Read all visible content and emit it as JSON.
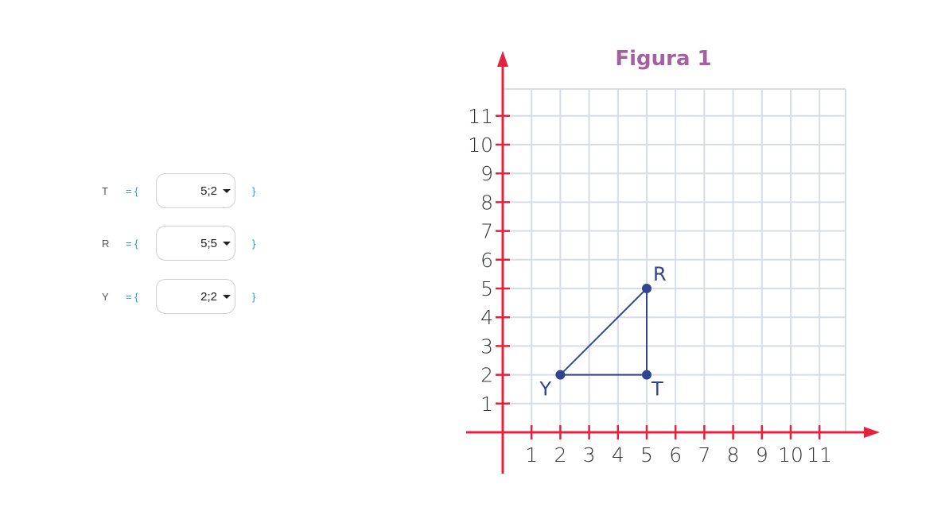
{
  "points": [
    {
      "label": "T",
      "open": "= {",
      "value": "5;2",
      "close": "}"
    },
    {
      "label": "R",
      "open": "= {",
      "value": "5;5",
      "close": "}"
    },
    {
      "label": "Y",
      "open": "= {",
      "value": "2;2",
      "close": "}"
    }
  ],
  "chart_data": {
    "type": "scatter",
    "title": "Figura 1",
    "x_ticks": [
      "1",
      "2",
      "3",
      "4",
      "5",
      "6",
      "7",
      "8",
      "9",
      "10",
      "11"
    ],
    "y_ticks": [
      "1",
      "2",
      "3",
      "4",
      "5",
      "6",
      "7",
      "8",
      "9",
      "10",
      "11"
    ],
    "xlim": [
      0,
      12
    ],
    "ylim": [
      0,
      12
    ],
    "grid": true,
    "points": [
      {
        "name": "Y",
        "x": 2,
        "y": 2
      },
      {
        "name": "T",
        "x": 5,
        "y": 2
      },
      {
        "name": "R",
        "x": 5,
        "y": 5
      }
    ],
    "polygon": [
      "Y",
      "T",
      "R"
    ],
    "colors": {
      "title": "#a460a0",
      "axis": "#e2233b",
      "grid": "#d6dde6",
      "shape": "#2f4592",
      "tick_label": "#333333"
    }
  }
}
